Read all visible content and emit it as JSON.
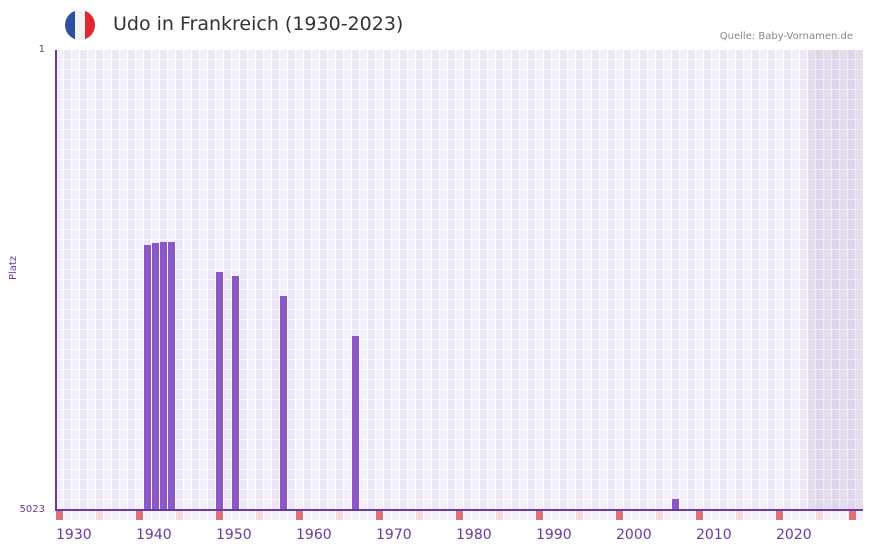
{
  "header": {
    "title": "Udo in Frankreich (1930-2023)",
    "source": "Quelle: Baby-Vornamen.de",
    "flag_colors": [
      "#2f4fa0",
      "#f2f2f2",
      "#e22630"
    ]
  },
  "colors": {
    "bar": "#8b57c6",
    "axis": "#6a3aa0",
    "decade_marker": "#e07078",
    "mid_marker": "#f5d9df"
  },
  "chart_data": {
    "type": "bar",
    "title": "Udo in Frankreich (1930-2023)",
    "xlabel": "",
    "ylabel": "Platz",
    "y_inverted": true,
    "ylim": [
      5023,
      1
    ],
    "y_ticks": [
      "1",
      "5023"
    ],
    "x_ticks": [
      "1930",
      "1940",
      "1950",
      "1960",
      "1970",
      "1980",
      "1990",
      "2000",
      "2010",
      "2020"
    ],
    "xlim": [
      1930,
      2030
    ],
    "grid": true,
    "categories": [
      1941,
      1942,
      1943,
      1944,
      1950,
      1952,
      1958,
      1967,
      2007
    ],
    "values": [
      2130,
      2108,
      2097,
      2097,
      2425,
      2468,
      2686,
      3123,
      4903
    ],
    "projection_shaded_from": 2024
  }
}
